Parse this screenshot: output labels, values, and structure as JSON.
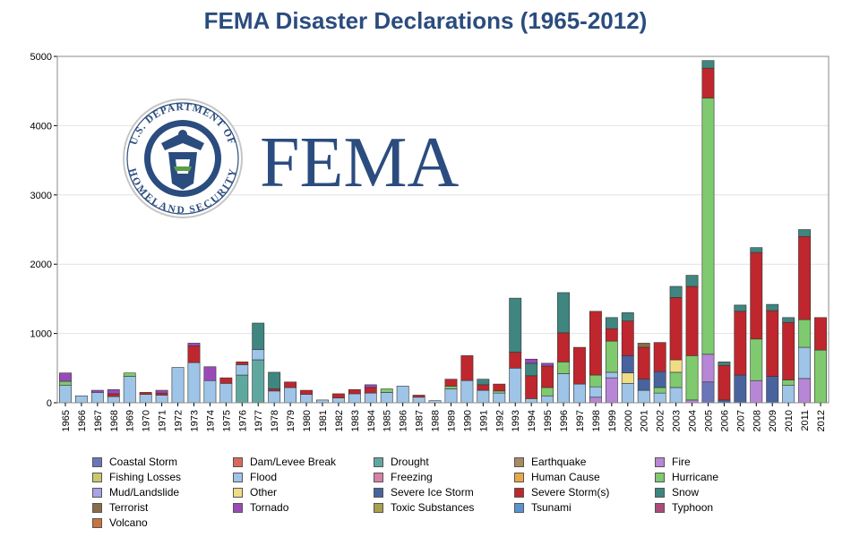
{
  "logo": {
    "seal_top_text": "U.S. DEPARTMENT OF",
    "seal_bottom_text": "HOMELAND SECURITY",
    "wordmark": "FEMA"
  },
  "chart_data": {
    "type": "bar",
    "stacked": true,
    "title": "FEMA Disaster Declarations (1965-2012)",
    "xlabel": "",
    "ylabel": "",
    "ylim": [
      0,
      5000
    ],
    "yticks": [
      0,
      1000,
      2000,
      3000,
      4000,
      5000
    ],
    "grid": true,
    "legend_position": "bottom",
    "categories": [
      "1965",
      "1966",
      "1967",
      "1968",
      "1969",
      "1970",
      "1971",
      "1972",
      "1973",
      "1974",
      "1975",
      "1976",
      "1977",
      "1978",
      "1979",
      "1980",
      "1981",
      "1982",
      "1983",
      "1984",
      "1985",
      "1986",
      "1987",
      "1988",
      "1989",
      "1990",
      "1991",
      "1992",
      "1993",
      "1994",
      "1995",
      "1996",
      "1997",
      "1998",
      "1999",
      "2000",
      "2001",
      "2002",
      "2003",
      "2004",
      "2005",
      "2006",
      "2007",
      "2008",
      "2009",
      "2010",
      "2011",
      "2012"
    ],
    "series": [
      {
        "name": "Coastal Storm",
        "color": "#6a76b8",
        "values": [
          0,
          0,
          0,
          0,
          0,
          0,
          0,
          0,
          0,
          0,
          0,
          0,
          0,
          0,
          0,
          0,
          0,
          0,
          0,
          0,
          0,
          0,
          0,
          0,
          0,
          0,
          0,
          0,
          0,
          0,
          0,
          0,
          0,
          0,
          0,
          0,
          0,
          0,
          0,
          0,
          300,
          0,
          0,
          0,
          0,
          0,
          0,
          0
        ]
      },
      {
        "name": "Dam/Levee Break",
        "color": "#d96a5a",
        "values": [
          0,
          0,
          0,
          0,
          0,
          0,
          0,
          0,
          0,
          0,
          0,
          0,
          0,
          0,
          0,
          0,
          0,
          0,
          0,
          0,
          0,
          0,
          0,
          0,
          0,
          0,
          0,
          0,
          0,
          0,
          0,
          0,
          0,
          0,
          0,
          0,
          0,
          0,
          0,
          0,
          0,
          0,
          0,
          0,
          0,
          0,
          0,
          0
        ]
      },
      {
        "name": "Drought",
        "color": "#5fa8a0",
        "values": [
          0,
          0,
          0,
          0,
          0,
          0,
          0,
          0,
          0,
          0,
          0,
          400,
          620,
          0,
          0,
          0,
          0,
          0,
          0,
          0,
          0,
          0,
          0,
          0,
          0,
          0,
          0,
          0,
          0,
          0,
          0,
          0,
          0,
          0,
          0,
          0,
          0,
          0,
          0,
          0,
          0,
          0,
          0,
          0,
          0,
          0,
          0,
          0
        ]
      },
      {
        "name": "Earthquake",
        "color": "#a88a63",
        "values": [
          0,
          0,
          0,
          0,
          0,
          0,
          0,
          0,
          0,
          0,
          0,
          0,
          0,
          0,
          0,
          0,
          0,
          0,
          0,
          0,
          0,
          0,
          0,
          0,
          0,
          0,
          0,
          0,
          0,
          0,
          0,
          0,
          0,
          0,
          0,
          0,
          0,
          0,
          0,
          0,
          0,
          0,
          0,
          0,
          0,
          0,
          0,
          0
        ]
      },
      {
        "name": "Fire",
        "color": "#b886d6",
        "values": [
          0,
          0,
          0,
          0,
          0,
          0,
          0,
          0,
          0,
          0,
          0,
          0,
          0,
          0,
          0,
          0,
          0,
          0,
          0,
          0,
          0,
          0,
          0,
          0,
          0,
          0,
          0,
          0,
          0,
          0,
          0,
          0,
          0,
          80,
          360,
          0,
          0,
          0,
          0,
          40,
          400,
          0,
          0,
          320,
          0,
          0,
          350,
          0
        ]
      },
      {
        "name": "Fishing Losses",
        "color": "#c9c96a",
        "values": [
          0,
          0,
          0,
          0,
          0,
          0,
          0,
          0,
          0,
          0,
          0,
          0,
          0,
          0,
          0,
          0,
          0,
          0,
          0,
          0,
          0,
          0,
          0,
          0,
          0,
          0,
          0,
          0,
          0,
          0,
          0,
          0,
          0,
          0,
          0,
          0,
          0,
          0,
          0,
          0,
          0,
          0,
          0,
          0,
          0,
          0,
          0,
          0
        ]
      },
      {
        "name": "Flood",
        "color": "#9ec4e8",
        "values": [
          250,
          100,
          150,
          90,
          380,
          120,
          110,
          510,
          580,
          320,
          280,
          150,
          150,
          170,
          220,
          120,
          40,
          70,
          130,
          140,
          150,
          240,
          80,
          30,
          200,
          320,
          180,
          140,
          500,
          60,
          100,
          420,
          270,
          150,
          80,
          280,
          180,
          140,
          220,
          0,
          0,
          0,
          0,
          0,
          0,
          250,
          450,
          0
        ]
      },
      {
        "name": "Freezing",
        "color": "#d880a8",
        "values": [
          0,
          0,
          0,
          0,
          0,
          0,
          0,
          0,
          0,
          0,
          0,
          0,
          0,
          0,
          0,
          0,
          0,
          0,
          0,
          0,
          0,
          0,
          0,
          0,
          0,
          0,
          0,
          0,
          0,
          0,
          0,
          0,
          0,
          0,
          0,
          0,
          0,
          0,
          0,
          0,
          0,
          0,
          0,
          0,
          0,
          0,
          0,
          0
        ]
      },
      {
        "name": "Human Cause",
        "color": "#e8a84a",
        "values": [
          0,
          0,
          0,
          0,
          0,
          0,
          0,
          0,
          0,
          0,
          0,
          0,
          0,
          0,
          0,
          0,
          0,
          0,
          0,
          0,
          0,
          0,
          0,
          0,
          0,
          0,
          0,
          0,
          0,
          0,
          0,
          0,
          0,
          0,
          0,
          0,
          0,
          0,
          0,
          0,
          0,
          0,
          0,
          0,
          0,
          0,
          0,
          0
        ]
      },
      {
        "name": "Hurricane",
        "color": "#7fca6e",
        "values": [
          60,
          0,
          0,
          0,
          50,
          0,
          0,
          0,
          0,
          0,
          0,
          0,
          0,
          0,
          0,
          0,
          0,
          0,
          0,
          0,
          50,
          0,
          0,
          0,
          40,
          0,
          0,
          30,
          0,
          0,
          120,
          170,
          0,
          170,
          450,
          0,
          0,
          80,
          220,
          640,
          3700,
          0,
          0,
          600,
          0,
          80,
          400,
          760
        ]
      },
      {
        "name": "Mud/Landslide",
        "color": "#a9a2e6",
        "values": [
          0,
          0,
          0,
          0,
          0,
          0,
          0,
          0,
          0,
          0,
          0,
          0,
          0,
          0,
          0,
          0,
          0,
          0,
          0,
          0,
          0,
          0,
          0,
          0,
          0,
          0,
          0,
          0,
          0,
          0,
          0,
          0,
          0,
          0,
          0,
          0,
          0,
          0,
          0,
          0,
          0,
          0,
          0,
          0,
          0,
          0,
          0,
          0
        ]
      },
      {
        "name": "Other",
        "color": "#f0dc84",
        "values": [
          0,
          0,
          0,
          0,
          0,
          0,
          0,
          0,
          0,
          0,
          0,
          0,
          0,
          0,
          0,
          0,
          0,
          0,
          0,
          0,
          0,
          0,
          0,
          0,
          0,
          0,
          0,
          0,
          0,
          0,
          0,
          0,
          0,
          0,
          0,
          150,
          0,
          0,
          180,
          0,
          0,
          0,
          0,
          0,
          0,
          0,
          0,
          0
        ]
      },
      {
        "name": "Severe Ice Storm",
        "color": "#48639e",
        "values": [
          0,
          0,
          0,
          0,
          0,
          0,
          0,
          0,
          0,
          0,
          0,
          0,
          0,
          0,
          0,
          0,
          0,
          0,
          0,
          0,
          0,
          0,
          0,
          0,
          0,
          0,
          0,
          0,
          0,
          0,
          0,
          0,
          0,
          0,
          0,
          250,
          160,
          230,
          0,
          0,
          0,
          40,
          400,
          0,
          380,
          0,
          0,
          0
        ]
      },
      {
        "name": "Severe Storm(s)",
        "color": "#c0262d",
        "values": [
          0,
          0,
          0,
          40,
          0,
          30,
          30,
          0,
          240,
          0,
          80,
          40,
          0,
          30,
          80,
          60,
          0,
          60,
          60,
          80,
          0,
          0,
          30,
          0,
          100,
          360,
          80,
          100,
          230,
          330,
          310,
          420,
          530,
          920,
          180,
          500,
          460,
          420,
          900,
          1000,
          430,
          500,
          920,
          1250,
          950,
          830,
          1200,
          470
        ]
      },
      {
        "name": "Snow",
        "color": "#3f8580",
        "values": [
          0,
          0,
          0,
          0,
          0,
          0,
          0,
          0,
          0,
          0,
          0,
          0,
          380,
          240,
          0,
          0,
          0,
          0,
          0,
          0,
          0,
          0,
          0,
          0,
          0,
          0,
          80,
          0,
          780,
          180,
          0,
          580,
          0,
          0,
          160,
          120,
          0,
          0,
          160,
          160,
          110,
          50,
          90,
          70,
          90,
          70,
          100,
          0
        ]
      },
      {
        "name": "Terrorist",
        "color": "#8a6b4a",
        "values": [
          0,
          0,
          0,
          0,
          0,
          0,
          0,
          0,
          0,
          0,
          0,
          0,
          0,
          0,
          0,
          0,
          0,
          0,
          0,
          0,
          0,
          0,
          0,
          0,
          0,
          0,
          0,
          0,
          0,
          0,
          0,
          0,
          0,
          0,
          0,
          0,
          60,
          0,
          0,
          0,
          0,
          0,
          0,
          0,
          0,
          0,
          0,
          0
        ]
      },
      {
        "name": "Tornado",
        "color": "#9a4ab8",
        "values": [
          120,
          0,
          30,
          60,
          0,
          0,
          40,
          0,
          40,
          200,
          0,
          0,
          0,
          0,
          0,
          0,
          0,
          0,
          0,
          40,
          0,
          0,
          0,
          0,
          0,
          0,
          0,
          0,
          0,
          60,
          40,
          0,
          0,
          0,
          0,
          0,
          0,
          0,
          0,
          0,
          0,
          0,
          0,
          0,
          0,
          0,
          0,
          0
        ]
      },
      {
        "name": "Toxic Substances",
        "color": "#a8a04a",
        "values": [
          0,
          0,
          0,
          0,
          0,
          0,
          0,
          0,
          0,
          0,
          0,
          0,
          0,
          0,
          0,
          0,
          0,
          0,
          0,
          0,
          0,
          0,
          0,
          0,
          0,
          0,
          0,
          0,
          0,
          0,
          0,
          0,
          0,
          0,
          0,
          0,
          0,
          0,
          0,
          0,
          0,
          0,
          0,
          0,
          0,
          0,
          0,
          0
        ]
      },
      {
        "name": "Tsunami",
        "color": "#5a94d0",
        "values": [
          0,
          0,
          0,
          0,
          0,
          0,
          0,
          0,
          0,
          0,
          0,
          0,
          0,
          0,
          0,
          0,
          0,
          0,
          0,
          0,
          0,
          0,
          0,
          0,
          0,
          0,
          0,
          0,
          0,
          0,
          0,
          0,
          0,
          0,
          0,
          0,
          0,
          0,
          0,
          0,
          0,
          0,
          0,
          0,
          0,
          0,
          0,
          0
        ]
      },
      {
        "name": "Typhoon",
        "color": "#b04a78",
        "values": [
          0,
          0,
          0,
          0,
          0,
          0,
          0,
          0,
          0,
          0,
          0,
          0,
          0,
          0,
          0,
          0,
          0,
          0,
          0,
          0,
          0,
          0,
          0,
          0,
          0,
          0,
          0,
          0,
          0,
          0,
          0,
          0,
          0,
          0,
          0,
          0,
          0,
          0,
          0,
          0,
          0,
          0,
          0,
          0,
          0,
          0,
          0,
          0
        ]
      },
      {
        "name": "Volcano",
        "color": "#c8743a",
        "values": [
          0,
          0,
          0,
          0,
          0,
          0,
          0,
          0,
          0,
          0,
          0,
          0,
          0,
          0,
          0,
          0,
          0,
          0,
          0,
          0,
          0,
          0,
          0,
          0,
          0,
          0,
          0,
          0,
          0,
          0,
          0,
          0,
          0,
          0,
          0,
          0,
          0,
          0,
          0,
          0,
          0,
          0,
          0,
          0,
          0,
          0,
          0,
          0
        ]
      }
    ]
  }
}
